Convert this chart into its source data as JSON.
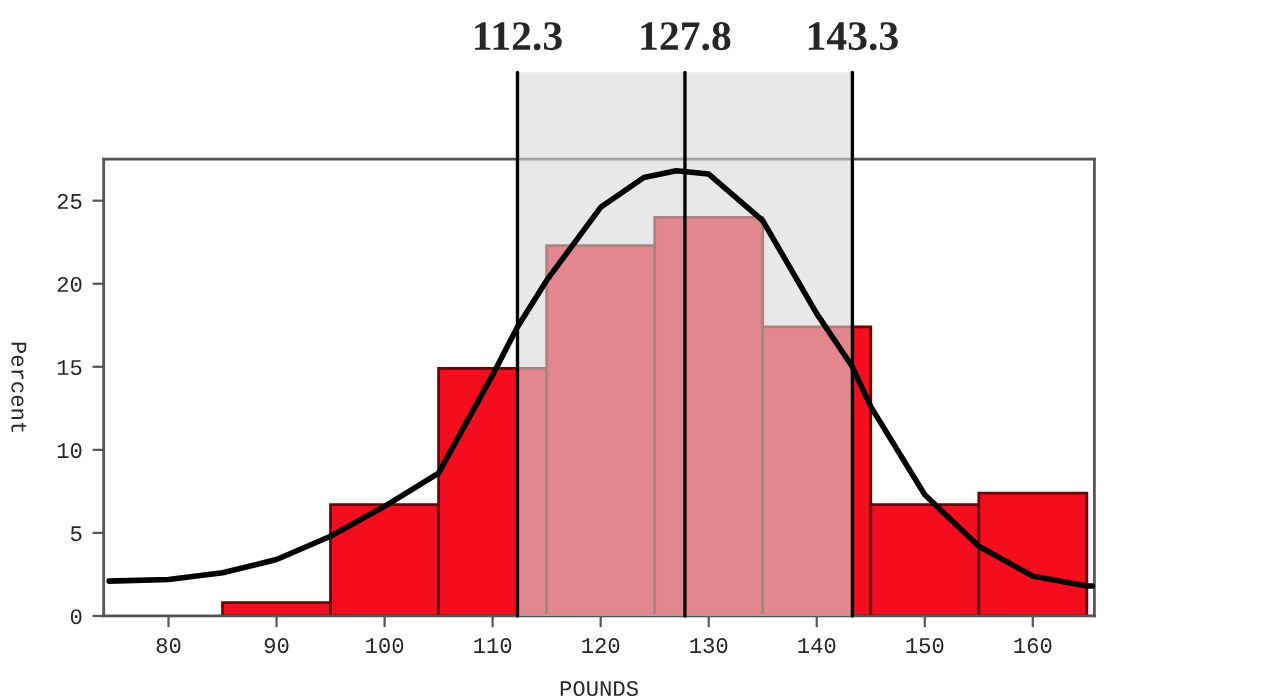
{
  "chart_data": {
    "type": "histogram",
    "xlabel": "POUNDS",
    "ylabel": "Percent",
    "bins": [
      85,
      95,
      105,
      115,
      125,
      135,
      145,
      155,
      165
    ],
    "values": [
      0.8,
      6.7,
      14.9,
      22.3,
      24.0,
      17.4,
      6.7,
      7.4
    ],
    "color": "#f20d1f",
    "series": [
      {
        "type": "line",
        "color": "#000000",
        "x": [
          74.5,
          80,
          85,
          90,
          95,
          100,
          105,
          110,
          112.3,
          115,
          120,
          124,
          127,
          130,
          135,
          140,
          143.3,
          145,
          150,
          155,
          160,
          165,
          165.5
        ],
        "values": [
          2.1,
          2.2,
          2.6,
          3.4,
          4.8,
          6.6,
          8.6,
          14.5,
          17.4,
          20.2,
          24.6,
          26.4,
          26.8,
          26.6,
          23.8,
          18.2,
          15.0,
          12.6,
          7.3,
          4.2,
          2.4,
          1.8,
          1.8
        ]
      }
    ],
    "bands": [
      {
        "axis": "x",
        "from": 112.3,
        "to": 143.3,
        "color": "#d9d9d9"
      }
    ],
    "ref_lines": [
      {
        "axis": "x",
        "value": 112.3,
        "label": "112.3"
      },
      {
        "axis": "x",
        "value": 127.8,
        "label": "127.8"
      },
      {
        "axis": "x",
        "value": 143.3,
        "label": "143.3"
      }
    ],
    "xlim": [
      74,
      165.7
    ],
    "ylim": [
      0,
      27.5
    ],
    "xticks": [
      80,
      90,
      100,
      110,
      120,
      130,
      140,
      150,
      160
    ],
    "yticks": [
      0,
      5,
      10,
      15,
      20,
      25
    ],
    "grid": false,
    "legend": false
  }
}
